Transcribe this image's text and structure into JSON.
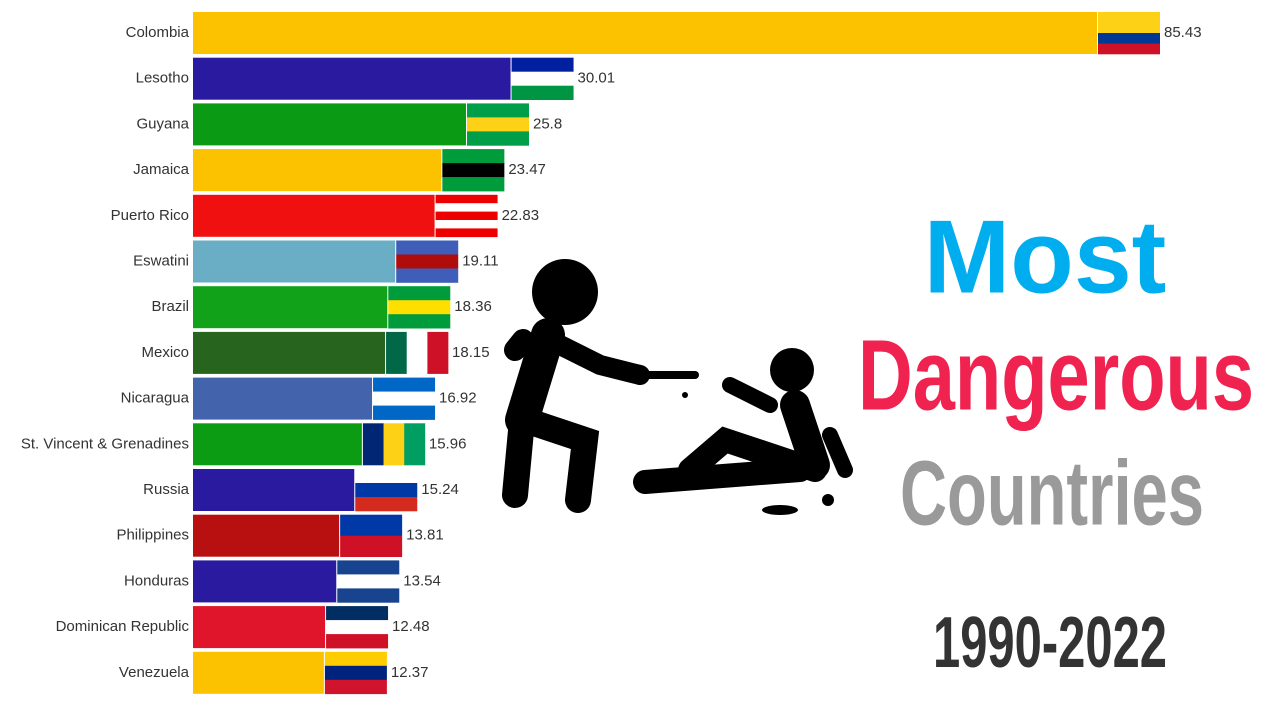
{
  "chart_data": {
    "type": "bar",
    "orientation": "horizontal",
    "categories": [
      "Colombia",
      "Lesotho",
      "Guyana",
      "Jamaica",
      "Puerto Rico",
      "Eswatini",
      "Brazil",
      "Mexico",
      "Nicaragua",
      "St. Vincent & Grenadines",
      "Russia",
      "Philippines",
      "Honduras",
      "Dominican Republic",
      "Venezuela"
    ],
    "values": [
      85.43,
      30.01,
      25.8,
      23.47,
      22.83,
      19.11,
      18.36,
      18.15,
      16.92,
      15.96,
      15.24,
      13.81,
      13.54,
      12.48,
      12.37
    ],
    "colors": [
      "#fcc200",
      "#2a1aa0",
      "#0a9a14",
      "#fcc200",
      "#f01010",
      "#6aaec6",
      "#12a21a",
      "#27651e",
      "#4463ad",
      "#0c9c14",
      "#2a1aa0",
      "#b81010",
      "#2a1aa0",
      "#e0142a",
      "#fcc200"
    ],
    "annotations": [
      "Most",
      "Dangerous",
      "Countries",
      "1990-2022"
    ]
  }
}
